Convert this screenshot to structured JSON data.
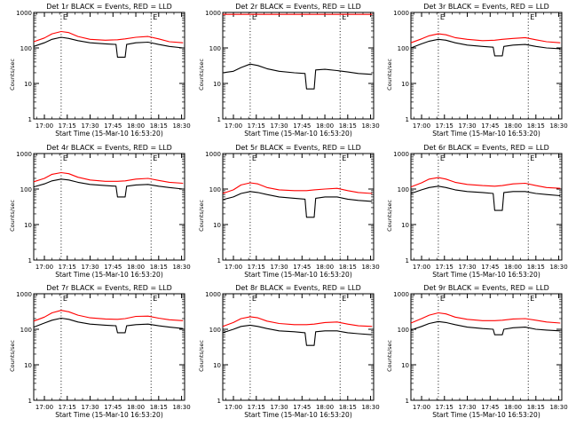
{
  "figure": {
    "start_time_label": "Start Time (15-Mar-10 16:53:20)",
    "ylabel": "Counts/sec",
    "x_ticks": [
      "17:00",
      "17:15",
      "17:30",
      "17:45",
      "18:00",
      "18:15",
      "18:30"
    ],
    "y_ticks": [
      "1",
      "10",
      "100",
      "1000"
    ],
    "marker_labels": [
      "E",
      "E"
    ],
    "colors": {
      "events": "#000000",
      "lld": "#ff0000",
      "background": "#ffffff"
    }
  },
  "chart_data": [
    {
      "type": "line",
      "title": "Det 1r BLACK = Events, RED = LLD",
      "xlabel": "Start Time (15-Mar-10 16:53:20)",
      "ylabel": "Counts/sec",
      "xlim": [
        "16:53",
        "18:32"
      ],
      "ylim": [
        1,
        1000
      ],
      "yscale": "log",
      "grid": false,
      "markers": [
        "17:11",
        "18:10"
      ],
      "series": [
        {
          "name": "RED = LLD",
          "color": "#ff0000",
          "x": [
            "16:53",
            "17:00",
            "17:05",
            "17:11",
            "17:16",
            "17:22",
            "17:30",
            "17:40",
            "17:48",
            "17:53",
            "18:00",
            "18:08",
            "18:15",
            "18:22",
            "18:31"
          ],
          "y": [
            150,
            190,
            250,
            290,
            270,
            210,
            175,
            165,
            170,
            180,
            200,
            210,
            180,
            150,
            140
          ]
        },
        {
          "name": "BLACK = Events",
          "color": "#000000",
          "x": [
            "16:53",
            "17:00",
            "17:05",
            "17:11",
            "17:16",
            "17:22",
            "17:30",
            "17:40",
            "17:47",
            "17:48",
            "17:53",
            "17:54",
            "18:00",
            "18:08",
            "18:15",
            "18:22",
            "18:31"
          ],
          "y": [
            110,
            140,
            175,
            200,
            185,
            160,
            140,
            130,
            125,
            55,
            55,
            125,
            140,
            145,
            125,
            110,
            100
          ]
        }
      ]
    },
    {
      "type": "line",
      "title": "Det 2r BLACK = Events, RED = LLD",
      "xlabel": "Start Time (15-Mar-10 16:53:20)",
      "ylabel": "Counts/sec",
      "xlim": [
        "16:53",
        "18:32"
      ],
      "ylim": [
        1,
        1000
      ],
      "yscale": "log",
      "grid": false,
      "markers": [
        "17:11",
        "18:10"
      ],
      "series": [
        {
          "name": "RED = LLD",
          "color": "#ff0000",
          "x": [
            "16:53",
            "17:30",
            "18:31"
          ],
          "y": [
            880,
            880,
            880
          ]
        },
        {
          "name": "BLACK = Events",
          "color": "#000000",
          "x": [
            "16:53",
            "17:00",
            "17:05",
            "17:11",
            "17:16",
            "17:22",
            "17:30",
            "17:40",
            "17:47",
            "17:48",
            "17:53",
            "17:54",
            "18:00",
            "18:08",
            "18:15",
            "18:22",
            "18:31"
          ],
          "y": [
            20,
            22,
            28,
            35,
            32,
            26,
            22,
            20,
            19,
            7,
            7,
            24,
            25,
            23,
            21,
            19,
            18
          ]
        }
      ]
    },
    {
      "type": "line",
      "title": "Det 3r BLACK = Events, RED = LLD",
      "xlabel": "Start Time (15-Mar-10 16:53:20)",
      "ylabel": "Counts/sec",
      "xlim": [
        "16:53",
        "18:32"
      ],
      "ylim": [
        1,
        1000
      ],
      "yscale": "log",
      "grid": false,
      "markers": [
        "17:11",
        "18:10"
      ],
      "series": [
        {
          "name": "RED = LLD",
          "color": "#ff0000",
          "x": [
            "16:53",
            "17:00",
            "17:05",
            "17:11",
            "17:16",
            "17:22",
            "17:30",
            "17:40",
            "17:48",
            "17:53",
            "18:00",
            "18:08",
            "18:15",
            "18:22",
            "18:31"
          ],
          "y": [
            140,
            180,
            220,
            250,
            235,
            195,
            175,
            160,
            165,
            175,
            185,
            195,
            170,
            150,
            140
          ]
        },
        {
          "name": "BLACK = Events",
          "color": "#000000",
          "x": [
            "16:53",
            "17:00",
            "17:05",
            "17:11",
            "17:16",
            "17:22",
            "17:30",
            "17:40",
            "17:47",
            "17:48",
            "17:53",
            "17:54",
            "18:00",
            "18:08",
            "18:15",
            "18:22",
            "18:31"
          ],
          "y": [
            100,
            130,
            155,
            175,
            165,
            140,
            120,
            110,
            105,
            60,
            60,
            110,
            120,
            125,
            110,
            100,
            95
          ]
        }
      ]
    },
    {
      "type": "line",
      "title": "Det 4r BLACK = Events, RED = LLD",
      "xlabel": "Start Time (15-Mar-10 16:53:20)",
      "ylabel": "Counts/sec",
      "xlim": [
        "16:53",
        "18:32"
      ],
      "ylim": [
        1,
        1000
      ],
      "yscale": "log",
      "grid": false,
      "markers": [
        "17:11",
        "18:10"
      ],
      "series": [
        {
          "name": "RED = LLD",
          "color": "#ff0000",
          "x": [
            "16:53",
            "17:00",
            "17:05",
            "17:11",
            "17:16",
            "17:22",
            "17:30",
            "17:40",
            "17:48",
            "17:53",
            "18:00",
            "18:08",
            "18:15",
            "18:22",
            "18:31"
          ],
          "y": [
            160,
            200,
            260,
            290,
            270,
            215,
            180,
            165,
            165,
            170,
            190,
            200,
            175,
            155,
            145
          ]
        },
        {
          "name": "BLACK = Events",
          "color": "#000000",
          "x": [
            "16:53",
            "17:00",
            "17:05",
            "17:11",
            "17:16",
            "17:22",
            "17:30",
            "17:40",
            "17:47",
            "17:48",
            "17:53",
            "17:54",
            "18:00",
            "18:08",
            "18:15",
            "18:22",
            "18:31"
          ],
          "y": [
            115,
            140,
            170,
            190,
            180,
            155,
            135,
            125,
            120,
            60,
            60,
            120,
            130,
            135,
            120,
            110,
            100
          ]
        }
      ]
    },
    {
      "type": "line",
      "title": "Det 5r BLACK = Events, RED = LLD",
      "xlabel": "Start Time (15-Mar-10 16:53:20)",
      "ylabel": "Counts/sec",
      "xlim": [
        "16:53",
        "18:32"
      ],
      "ylim": [
        1,
        1000
      ],
      "yscale": "log",
      "grid": false,
      "markers": [
        "17:11",
        "18:10"
      ],
      "series": [
        {
          "name": "RED = LLD",
          "color": "#ff0000",
          "x": [
            "16:53",
            "17:00",
            "17:05",
            "17:11",
            "17:16",
            "17:22",
            "17:30",
            "17:40",
            "17:48",
            "17:53",
            "18:00",
            "18:08",
            "18:15",
            "18:22",
            "18:31"
          ],
          "y": [
            75,
            95,
            130,
            150,
            140,
            110,
            95,
            90,
            90,
            95,
            100,
            105,
            90,
            80,
            75
          ]
        },
        {
          "name": "BLACK = Events",
          "color": "#000000",
          "x": [
            "16:53",
            "17:00",
            "17:05",
            "17:11",
            "17:16",
            "17:22",
            "17:30",
            "17:40",
            "17:47",
            "17:48",
            "17:53",
            "17:54",
            "18:00",
            "18:08",
            "18:15",
            "18:22",
            "18:31"
          ],
          "y": [
            50,
            60,
            75,
            85,
            80,
            70,
            60,
            55,
            52,
            16,
            16,
            55,
            60,
            60,
            52,
            48,
            45
          ]
        }
      ]
    },
    {
      "type": "line",
      "title": "Det 6r BLACK = Events, RED = LLD",
      "xlabel": "Start Time (15-Mar-10 16:53:20)",
      "ylabel": "Counts/sec",
      "xlim": [
        "16:53",
        "18:32"
      ],
      "ylim": [
        1,
        1000
      ],
      "yscale": "log",
      "grid": false,
      "markers": [
        "17:11",
        "18:10"
      ],
      "series": [
        {
          "name": "RED = LLD",
          "color": "#ff0000",
          "x": [
            "16:53",
            "17:00",
            "17:05",
            "17:11",
            "17:16",
            "17:22",
            "17:30",
            "17:40",
            "17:48",
            "17:53",
            "18:00",
            "18:08",
            "18:15",
            "18:22",
            "18:31"
          ],
          "y": [
            115,
            150,
            190,
            210,
            190,
            155,
            135,
            125,
            120,
            125,
            140,
            145,
            125,
            110,
            105
          ]
        },
        {
          "name": "BLACK = Events",
          "color": "#000000",
          "x": [
            "16:53",
            "17:00",
            "17:05",
            "17:11",
            "17:16",
            "17:22",
            "17:30",
            "17:40",
            "17:47",
            "17:48",
            "17:53",
            "17:54",
            "18:00",
            "18:08",
            "18:15",
            "18:22",
            "18:31"
          ],
          "y": [
            75,
            95,
            110,
            120,
            110,
            95,
            85,
            80,
            75,
            25,
            25,
            80,
            85,
            85,
            75,
            70,
            65
          ]
        }
      ]
    },
    {
      "type": "line",
      "title": "Det 7r BLACK = Events, RED = LLD",
      "xlabel": "Start Time (15-Mar-10 16:53:20)",
      "ylabel": "Counts/sec",
      "xlim": [
        "16:53",
        "18:32"
      ],
      "ylim": [
        1,
        1000
      ],
      "yscale": "log",
      "grid": false,
      "markers": [
        "17:11",
        "18:10"
      ],
      "series": [
        {
          "name": "RED = LLD",
          "color": "#ff0000",
          "x": [
            "16:53",
            "17:00",
            "17:05",
            "17:11",
            "17:16",
            "17:22",
            "17:30",
            "17:40",
            "17:48",
            "17:53",
            "18:00",
            "18:08",
            "18:15",
            "18:22",
            "18:31"
          ],
          "y": [
            170,
            220,
            290,
            340,
            310,
            250,
            210,
            195,
            190,
            200,
            230,
            235,
            205,
            185,
            175
          ]
        },
        {
          "name": "BLACK = Events",
          "color": "#000000",
          "x": [
            "16:53",
            "17:00",
            "17:05",
            "17:11",
            "17:16",
            "17:22",
            "17:30",
            "17:40",
            "17:47",
            "17:48",
            "17:53",
            "17:54",
            "18:00",
            "18:08",
            "18:15",
            "18:22",
            "18:31"
          ],
          "y": [
            115,
            150,
            180,
            205,
            190,
            160,
            140,
            130,
            125,
            80,
            80,
            125,
            135,
            140,
            125,
            115,
            105
          ]
        }
      ]
    },
    {
      "type": "line",
      "title": "Det 8r BLACK = Events, RED = LLD",
      "xlabel": "Start Time (15-Mar-10 16:53:20)",
      "ylabel": "Counts/sec",
      "xlim": [
        "16:53",
        "18:32"
      ],
      "ylim": [
        1,
        1000
      ],
      "yscale": "log",
      "grid": false,
      "markers": [
        "17:11",
        "18:10"
      ],
      "series": [
        {
          "name": "RED = LLD",
          "color": "#ff0000",
          "x": [
            "16:53",
            "17:00",
            "17:05",
            "17:11",
            "17:16",
            "17:22",
            "17:30",
            "17:40",
            "17:48",
            "17:53",
            "18:00",
            "18:08",
            "18:15",
            "18:22",
            "18:31"
          ],
          "y": [
            120,
            155,
            200,
            225,
            210,
            170,
            145,
            135,
            135,
            140,
            155,
            160,
            140,
            125,
            120
          ]
        },
        {
          "name": "BLACK = Events",
          "color": "#000000",
          "x": [
            "16:53",
            "17:00",
            "17:05",
            "17:11",
            "17:16",
            "17:22",
            "17:30",
            "17:40",
            "17:47",
            "17:48",
            "17:53",
            "17:54",
            "18:00",
            "18:08",
            "18:15",
            "18:22",
            "18:31"
          ],
          "y": [
            80,
            100,
            120,
            130,
            120,
            105,
            90,
            85,
            80,
            35,
            35,
            85,
            90,
            90,
            80,
            75,
            70
          ]
        }
      ]
    },
    {
      "type": "line",
      "title": "Det 9r BLACK = Events, RED = LLD",
      "xlabel": "Start Time (15-Mar-10 16:53:20)",
      "ylabel": "Counts/sec",
      "xlim": [
        "16:53",
        "18:32"
      ],
      "ylim": [
        1,
        1000
      ],
      "yscale": "log",
      "grid": false,
      "markers": [
        "17:11",
        "18:10"
      ],
      "series": [
        {
          "name": "RED = LLD",
          "color": "#ff0000",
          "x": [
            "16:53",
            "17:00",
            "17:05",
            "17:11",
            "17:16",
            "17:22",
            "17:30",
            "17:40",
            "17:48",
            "17:53",
            "18:00",
            "18:08",
            "18:15",
            "18:22",
            "18:31"
          ],
          "y": [
            150,
            200,
            250,
            290,
            270,
            220,
            190,
            175,
            175,
            180,
            195,
            200,
            180,
            160,
            150
          ]
        },
        {
          "name": "BLACK = Events",
          "color": "#000000",
          "x": [
            "16:53",
            "17:00",
            "17:05",
            "17:11",
            "17:16",
            "17:22",
            "17:30",
            "17:40",
            "17:47",
            "17:48",
            "17:53",
            "17:54",
            "18:00",
            "18:08",
            "18:15",
            "18:22",
            "18:31"
          ],
          "y": [
            95,
            120,
            145,
            165,
            155,
            135,
            115,
            105,
            100,
            70,
            70,
            100,
            110,
            115,
            100,
            95,
            90
          ]
        }
      ]
    }
  ]
}
